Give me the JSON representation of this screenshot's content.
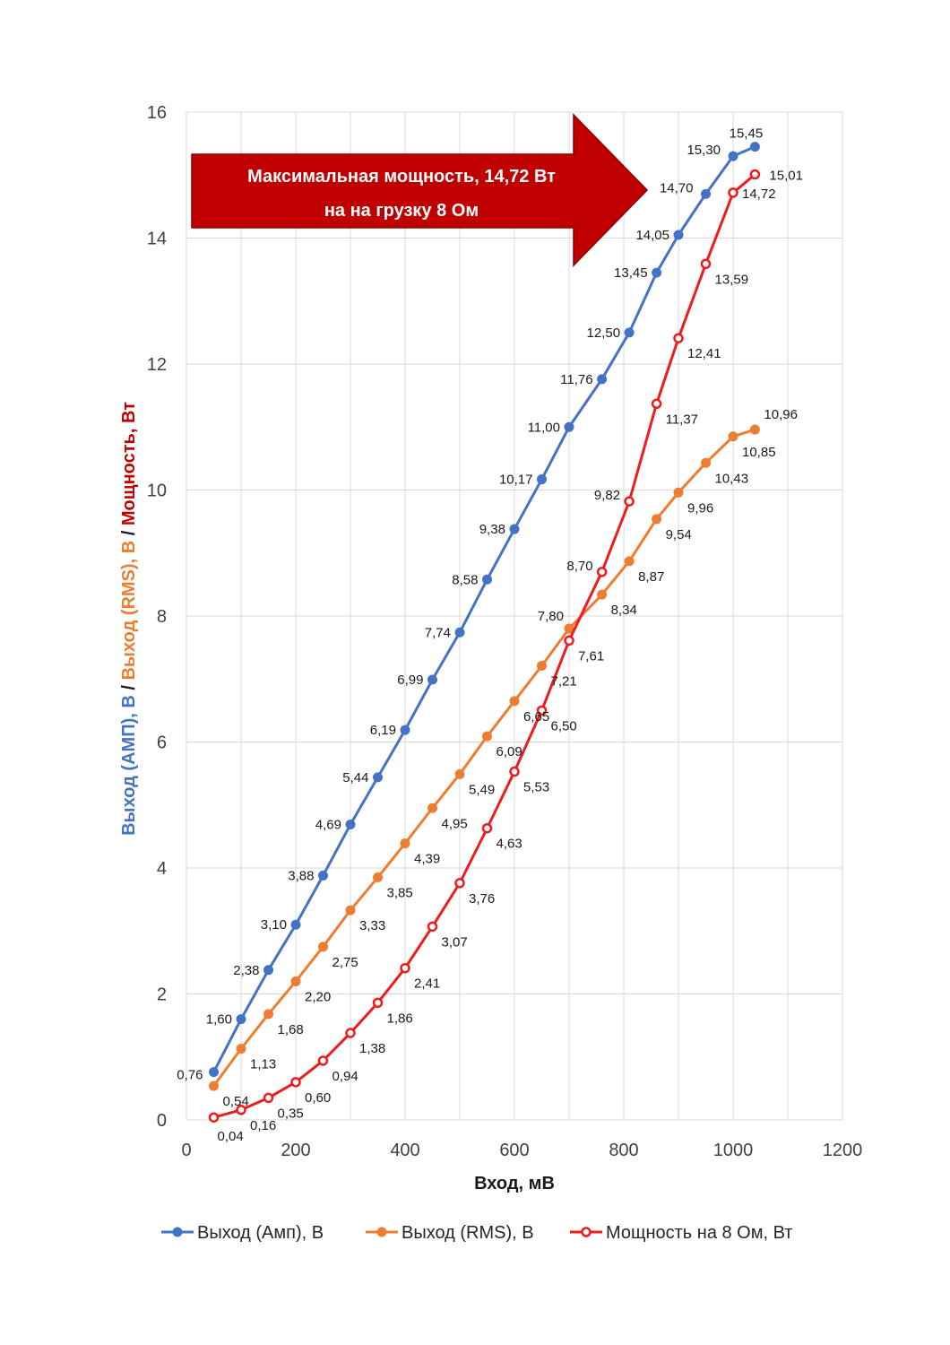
{
  "chart_data": {
    "type": "line",
    "xlabel": "Вход, мВ",
    "ylabel_parts": [
      {
        "text": "Выход (АМП), В",
        "color": "#4472C4"
      },
      {
        "text": " / ",
        "color": "#1a1a1a"
      },
      {
        "text": "Выход (RMS), В",
        "color": "#ED7D31"
      },
      {
        "text": " / ",
        "color": "#1a1a1a"
      },
      {
        "text": "Мощность, Вт",
        "color": "#C00000"
      }
    ],
    "xlim": [
      0,
      1200
    ],
    "ylim": [
      0,
      16
    ],
    "xticks": [
      0,
      200,
      400,
      600,
      800,
      1000,
      1200
    ],
    "yticks": [
      0,
      2,
      4,
      6,
      8,
      10,
      12,
      14,
      16
    ],
    "grid": true,
    "legend_position": "bottom",
    "x": [
      50,
      100,
      150,
      200,
      250,
      300,
      350,
      400,
      450,
      500,
      550,
      600,
      650,
      700,
      760,
      810,
      860,
      900,
      950,
      1000,
      1040
    ],
    "series": [
      {
        "name": "Выход (Амп), В",
        "color": "#4472C4",
        "marker": "filled",
        "values": [
          0.76,
          1.6,
          2.38,
          3.1,
          3.88,
          4.69,
          5.44,
          6.19,
          6.99,
          7.74,
          8.58,
          9.38,
          10.17,
          11.0,
          11.76,
          12.5,
          13.45,
          14.05,
          14.7,
          15.3,
          15.45
        ],
        "labels": [
          "0,76",
          "1,60",
          "2,38",
          "3,10",
          "3,88",
          "4,69",
          "5,44",
          "6,19",
          "6,99",
          "7,74",
          "8,58",
          "9,38",
          "10,17",
          "11,00",
          "11,76",
          "12,50",
          "13,45",
          "14,05",
          "14,70",
          "15,30",
          "15,45"
        ]
      },
      {
        "name": "Выход (RMS), В",
        "color": "#ED7D31",
        "marker": "filled",
        "values": [
          0.54,
          1.13,
          1.68,
          2.2,
          2.75,
          3.33,
          3.85,
          4.39,
          4.95,
          5.49,
          6.09,
          6.65,
          7.21,
          7.8,
          8.34,
          8.87,
          9.54,
          9.96,
          10.43,
          10.85,
          10.96
        ],
        "labels": [
          "0,54",
          "1,13",
          "1,68",
          "2,20",
          "2,75",
          "3,33",
          "3,85",
          "4,39",
          "4,95",
          "5,49",
          "6,09",
          "6,65",
          "7,21",
          "7,80",
          "8,34",
          "8,87",
          "9,54",
          "9,96",
          "10,43",
          "10,85",
          "10,96"
        ]
      },
      {
        "name": "Мощность на 8 Ом, Вт",
        "color": "#EE1C1C",
        "marker": "hollow",
        "values": [
          0.04,
          0.16,
          0.35,
          0.6,
          0.94,
          1.38,
          1.86,
          2.41,
          3.07,
          3.76,
          4.63,
          5.53,
          6.5,
          7.61,
          8.7,
          9.82,
          11.37,
          12.41,
          13.59,
          14.72,
          15.01
        ],
        "labels": [
          "0,04",
          "0,16",
          "0,35",
          "0,60",
          "0,94",
          "1,38",
          "1,86",
          "2,41",
          "3,07",
          "3,76",
          "4,63",
          "5,53",
          "6,50",
          "7,61",
          "8,70",
          "9,82",
          "11,37",
          "12,41",
          "13,59",
          "14,72",
          "15,01"
        ]
      }
    ],
    "annotation": {
      "lines": [
        "Максимальная мощность, 14,72 Вт",
        "на на грузку 8 Ом"
      ],
      "color": "#C00000"
    }
  }
}
